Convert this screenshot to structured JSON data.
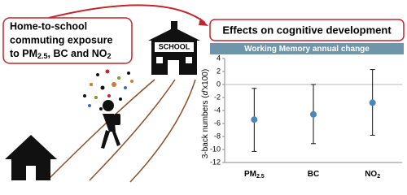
{
  "exposure_box": {
    "lines": [
      "Home-to-school",
      "commuting exposure"
    ],
    "last_line": [
      "to PM",
      "2.5",
      ", BC and NO",
      "2"
    ]
  },
  "school_sign": "SCHOOL",
  "effects_box": "Effects on cognitive development",
  "chart_data": {
    "type": "errorbar",
    "title": "Working Memory annual change",
    "y_label": [
      "3-back numbers (",
      "d'",
      "x100)"
    ],
    "categories": [
      [
        "PM",
        "2.5"
      ],
      [
        "BC"
      ],
      [
        "NO",
        "2"
      ]
    ],
    "series": [
      {
        "color": "#4a86b8",
        "values": [
          -5.4,
          -4.6,
          -2.8
        ],
        "lower": [
          -10.3,
          -9.1,
          -7.8
        ],
        "upper": [
          -0.6,
          0,
          2.3
        ]
      }
    ],
    "ylim": [
      -12,
      4
    ],
    "yticks": [
      -12,
      -10,
      -8,
      -6,
      -4,
      -2,
      0,
      2,
      4
    ]
  }
}
